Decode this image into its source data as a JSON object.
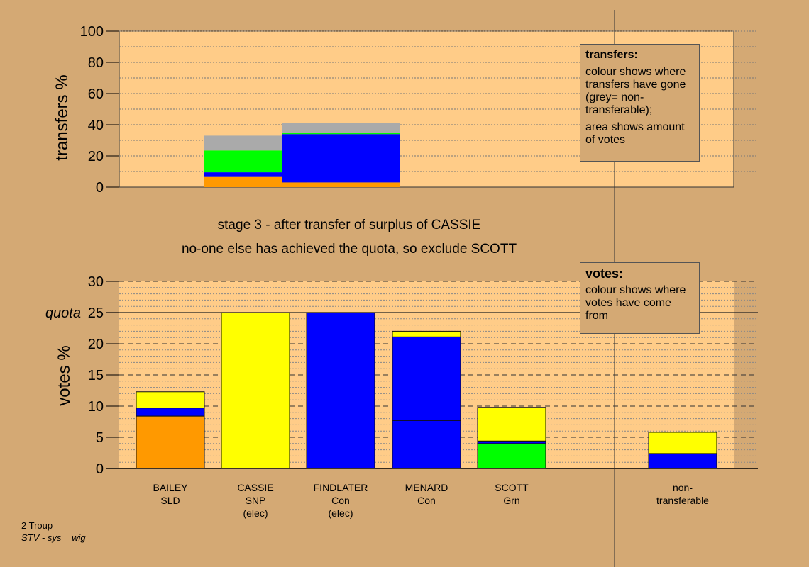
{
  "colors": {
    "background": "#D4A974",
    "plot_bg": "#FFCC88",
    "SLD": "#FF9900",
    "SNP": "#FFFF00",
    "Con": "#0000FF",
    "Grn": "#00FF00",
    "nontransferable": "#AAAAAA"
  },
  "stage_text": {
    "line1": "stage 3 - after transfer of surplus of CASSIE",
    "line2": "no-one else has achieved the quota, so exclude SCOTT"
  },
  "legend_transfers": {
    "title": "transfers:",
    "text1": "colour shows where transfers have gone (grey= non-transferable);",
    "text2": "area shows amount of votes"
  },
  "legend_votes": {
    "title": "votes:",
    "text1": "colour shows where votes have come from"
  },
  "footer": {
    "line1": "2 Troup",
    "line2": "STV - sys = wig"
  },
  "chart_data": [
    {
      "type": "bar",
      "title": "",
      "ylabel": "transfers %",
      "ylim": [
        0,
        100
      ],
      "yticks": [
        0,
        20,
        40,
        60,
        80,
        100
      ],
      "grid": true,
      "description_blocks": [
        {
          "name": "transfer block 1",
          "segments": [
            {
              "party": "SLD",
              "from": 0,
              "to": 6.5
            },
            {
              "party": "Con",
              "from": 6.5,
              "to": 9.5
            },
            {
              "party": "Grn",
              "from": 9.5,
              "to": 23.5
            },
            {
              "party": "nontransferable",
              "from": 23.5,
              "to": 33
            }
          ]
        },
        {
          "name": "transfer block 2",
          "segments": [
            {
              "party": "SLD",
              "from": 0,
              "to": 3
            },
            {
              "party": "Con",
              "from": 3,
              "to": 34
            },
            {
              "party": "Grn",
              "from": 34,
              "to": 35
            },
            {
              "party": "nontransferable",
              "from": 35,
              "to": 41
            }
          ]
        }
      ]
    },
    {
      "type": "bar",
      "title": "",
      "ylabel": "votes %",
      "ylim": [
        0,
        30
      ],
      "yticks": [
        0,
        5,
        10,
        15,
        20,
        25,
        30
      ],
      "quota": 25,
      "quota_label": "quota",
      "grid": true,
      "candidates": [
        {
          "name": "BAILEY",
          "party": "SLD",
          "note": "",
          "segments": [
            {
              "party": "SLD",
              "value": 8.4
            },
            {
              "party": "Con",
              "value": 1.3
            },
            {
              "party": "SNP",
              "value": 2.6
            }
          ]
        },
        {
          "name": "CASSIE",
          "party": "SNP",
          "note": "(elec)",
          "segments": [
            {
              "party": "SNP",
              "value": 25
            }
          ]
        },
        {
          "name": "FINDLATER",
          "party": "Con",
          "note": "(elec)",
          "segments": [
            {
              "party": "Con",
              "value": 25
            }
          ]
        },
        {
          "name": "MENARD",
          "party": "Con",
          "note": "",
          "segments": [
            {
              "party": "Con",
              "value": 7.7
            },
            {
              "party": "Con",
              "value": 13.4
            },
            {
              "party": "SNP",
              "value": 0.9
            }
          ]
        },
        {
          "name": "SCOTT",
          "party": "Grn",
          "note": "",
          "segments": [
            {
              "party": "Grn",
              "value": 4.0
            },
            {
              "party": "Con",
              "value": 0.4
            },
            {
              "party": "SNP",
              "value": 5.4
            }
          ]
        }
      ],
      "nontransferable": {
        "label_line1": "non-",
        "label_line2": "transferable",
        "segments": [
          {
            "party": "Con",
            "value": 2.4
          },
          {
            "party": "SNP",
            "value": 3.4
          }
        ]
      }
    }
  ]
}
